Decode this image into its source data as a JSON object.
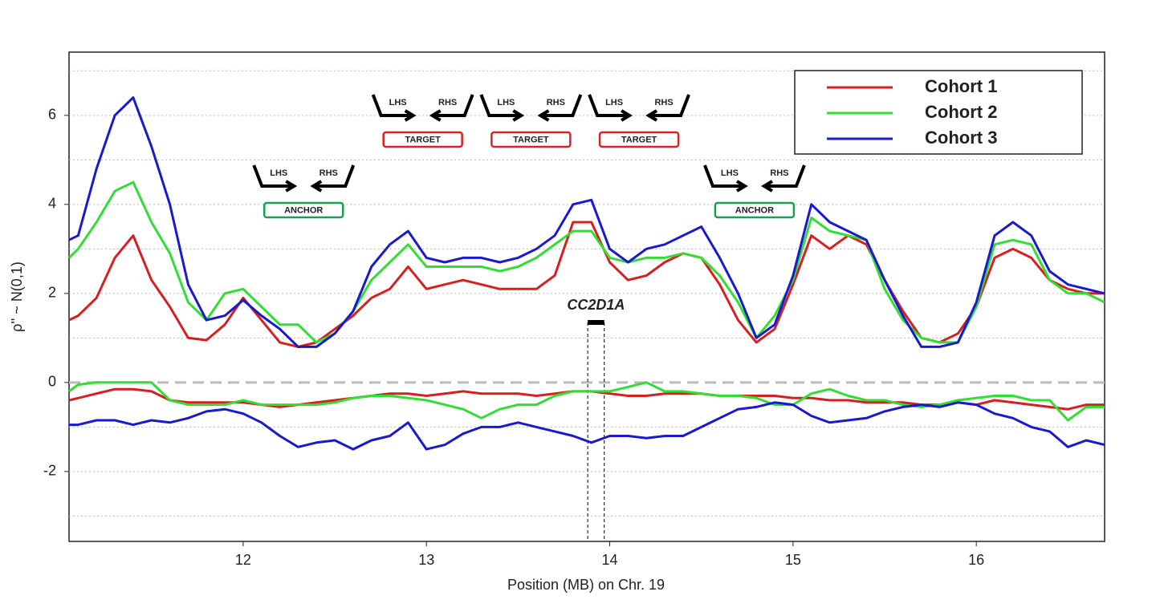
{
  "chart_data": {
    "type": "line",
    "x_label": "Position (MB) on Chr. 19",
    "y_label": "ρ'' ~ N(0,1)",
    "xlim": [
      11.05,
      16.7
    ],
    "ylim": [
      -3.57,
      7.42
    ],
    "xticks": [
      12,
      13,
      14,
      15,
      16
    ],
    "yticks": [
      -2,
      0,
      2,
      4,
      6
    ],
    "gridlines": [
      -3,
      -2,
      -1,
      0,
      1,
      2,
      3,
      4,
      5,
      6,
      7
    ],
    "zero_line": true,
    "legend": "top-right",
    "x": [
      11.05,
      11.1,
      11.2,
      11.3,
      11.4,
      11.5,
      11.6,
      11.7,
      11.8,
      11.9,
      12.0,
      12.1,
      12.2,
      12.3,
      12.4,
      12.5,
      12.6,
      12.7,
      12.8,
      12.9,
      13.0,
      13.1,
      13.2,
      13.3,
      13.4,
      13.5,
      13.6,
      13.7,
      13.8,
      13.9,
      14.0,
      14.1,
      14.2,
      14.3,
      14.4,
      14.5,
      14.6,
      14.7,
      14.8,
      14.9,
      15.0,
      15.1,
      15.2,
      15.3,
      15.4,
      15.5,
      15.6,
      15.7,
      15.8,
      15.9,
      16.0,
      16.1,
      16.2,
      16.3,
      16.4,
      16.5,
      16.6,
      16.7
    ],
    "series": [
      {
        "name": "Cohort 1",
        "color": "#d42020",
        "values": [
          1.4,
          1.5,
          1.9,
          2.8,
          3.3,
          2.3,
          1.7,
          1.0,
          0.95,
          1.3,
          1.9,
          1.4,
          0.9,
          0.8,
          0.9,
          1.2,
          1.5,
          1.9,
          2.1,
          2.6,
          2.1,
          2.2,
          2.3,
          2.2,
          2.1,
          2.1,
          2.1,
          2.4,
          3.6,
          3.6,
          2.7,
          2.3,
          2.4,
          2.7,
          2.9,
          2.8,
          2.2,
          1.4,
          0.9,
          1.2,
          2.2,
          3.3,
          3.0,
          3.3,
          3.1,
          2.3,
          1.6,
          1.0,
          0.9,
          1.1,
          1.7,
          2.8,
          3.0,
          2.8,
          2.3,
          2.1,
          2.0,
          2.0
        ],
        "lower_values": [
          -0.4,
          -0.35,
          -0.25,
          -0.15,
          -0.15,
          -0.2,
          -0.4,
          -0.45,
          -0.45,
          -0.45,
          -0.45,
          -0.5,
          -0.55,
          -0.5,
          -0.45,
          -0.4,
          -0.35,
          -0.3,
          -0.25,
          -0.25,
          -0.3,
          -0.25,
          -0.2,
          -0.25,
          -0.25,
          -0.25,
          -0.3,
          -0.25,
          -0.2,
          -0.2,
          -0.25,
          -0.3,
          -0.3,
          -0.25,
          -0.25,
          -0.25,
          -0.3,
          -0.3,
          -0.3,
          -0.3,
          -0.35,
          -0.35,
          -0.4,
          -0.4,
          -0.45,
          -0.45,
          -0.45,
          -0.5,
          -0.5,
          -0.45,
          -0.5,
          -0.4,
          -0.45,
          -0.5,
          -0.55,
          -0.6,
          -0.5,
          -0.5
        ]
      },
      {
        "name": "Cohort 2",
        "color": "#33dd33",
        "values": [
          2.8,
          3.0,
          3.6,
          4.3,
          4.5,
          3.6,
          2.9,
          1.8,
          1.4,
          2.0,
          2.1,
          1.7,
          1.3,
          1.3,
          0.9,
          1.1,
          1.6,
          2.3,
          2.7,
          3.1,
          2.6,
          2.6,
          2.6,
          2.6,
          2.5,
          2.6,
          2.8,
          3.1,
          3.4,
          3.4,
          2.8,
          2.7,
          2.8,
          2.8,
          2.9,
          2.8,
          2.4,
          1.8,
          1.0,
          1.5,
          2.3,
          3.7,
          3.4,
          3.3,
          3.2,
          2.1,
          1.4,
          1.0,
          0.9,
          0.9,
          1.7,
          3.1,
          3.2,
          3.1,
          2.3,
          2.0,
          2.0,
          1.8
        ],
        "lower_values": [
          -0.2,
          -0.05,
          0,
          0,
          0,
          0,
          -0.4,
          -0.5,
          -0.5,
          -0.5,
          -0.4,
          -0.5,
          -0.5,
          -0.5,
          -0.5,
          -0.45,
          -0.35,
          -0.3,
          -0.3,
          -0.35,
          -0.4,
          -0.5,
          -0.6,
          -0.8,
          -0.6,
          -0.5,
          -0.5,
          -0.3,
          -0.2,
          -0.2,
          -0.2,
          -0.1,
          0,
          -0.2,
          -0.2,
          -0.25,
          -0.3,
          -0.3,
          -0.35,
          -0.5,
          -0.5,
          -0.25,
          -0.15,
          -0.3,
          -0.4,
          -0.4,
          -0.5,
          -0.55,
          -0.5,
          -0.4,
          -0.35,
          -0.3,
          -0.3,
          -0.4,
          -0.4,
          -0.85,
          -0.55,
          -0.55
        ]
      },
      {
        "name": "Cohort 3",
        "color": "#1a1acc",
        "values": [
          3.2,
          3.3,
          4.8,
          6.0,
          6.4,
          5.3,
          4.0,
          2.2,
          1.4,
          1.5,
          1.85,
          1.5,
          1.2,
          0.8,
          0.8,
          1.1,
          1.6,
          2.6,
          3.1,
          3.4,
          2.8,
          2.7,
          2.8,
          2.8,
          2.7,
          2.8,
          3.0,
          3.3,
          4.0,
          4.1,
          3.0,
          2.7,
          3.0,
          3.1,
          3.3,
          3.5,
          2.8,
          2.0,
          1.0,
          1.3,
          2.4,
          4.0,
          3.6,
          3.4,
          3.2,
          2.3,
          1.5,
          0.8,
          0.8,
          0.9,
          1.8,
          3.3,
          3.6,
          3.3,
          2.5,
          2.2,
          2.1,
          2.0
        ],
        "lower_values": [
          -0.95,
          -0.95,
          -0.85,
          -0.85,
          -0.95,
          -0.85,
          -0.9,
          -0.8,
          -0.65,
          -0.6,
          -0.7,
          -0.9,
          -1.2,
          -1.45,
          -1.35,
          -1.3,
          -1.5,
          -1.3,
          -1.2,
          -0.9,
          -1.5,
          -1.4,
          -1.15,
          -1.0,
          -1.0,
          -0.9,
          -1.0,
          -1.1,
          -1.2,
          -1.35,
          -1.2,
          -1.2,
          -1.25,
          -1.2,
          -1.2,
          -1.0,
          -0.8,
          -0.6,
          -0.55,
          -0.45,
          -0.5,
          -0.75,
          -0.9,
          -0.85,
          -0.8,
          -0.65,
          -0.55,
          -0.5,
          -0.55,
          -0.45,
          -0.5,
          -0.7,
          -0.8,
          -1.0,
          -1.1,
          -1.45,
          -1.3,
          -1.4
        ]
      }
    ],
    "gene": {
      "label": "CC2D1A",
      "start": 13.88,
      "end": 13.97
    },
    "primer_sets": [
      {
        "x": 12.33,
        "left": "LHS",
        "right": "RHS",
        "label": "ANCHOR",
        "color": "#1a9e50"
      },
      {
        "x": 12.98,
        "left": "LHS",
        "right": "RHS",
        "label": "TARGET",
        "color": "#e02020"
      },
      {
        "x": 13.57,
        "left": "LHS",
        "right": "RHS",
        "label": "TARGET",
        "color": "#e02020"
      },
      {
        "x": 14.16,
        "left": "LHS",
        "right": "RHS",
        "label": "TARGET",
        "color": "#e02020"
      },
      {
        "x": 14.79,
        "left": "LHS",
        "right": "RHS",
        "label": "ANCHOR",
        "color": "#1a9e50"
      }
    ]
  }
}
